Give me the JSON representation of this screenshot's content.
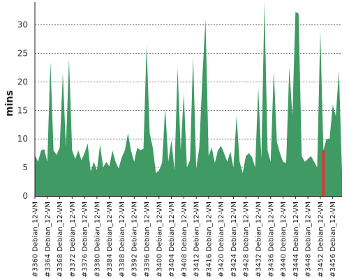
{
  "chart_data": {
    "type": "area",
    "title": "",
    "xlabel": "",
    "ylabel": "mins",
    "ylim": [
      0,
      34
    ],
    "yticks": [
      0,
      5,
      10,
      15,
      20,
      25,
      30
    ],
    "grid": "horizontal-dashed",
    "colors": {
      "fill": "#3f9a64",
      "highlight": "#d63a3a",
      "grid": "#555555"
    },
    "x_tick_labels": [
      "#3360 Debian_12-VM",
      "#3364 Debian_12-VM",
      "#3368 Debian_12-VM",
      "#3372 Debian_12-VM",
      "#3376 Debian_12-VM",
      "#3380 Debian_12-VM",
      "#3384 Debian_12-VM",
      "#3388 Debian_12-VM",
      "#3392 Debian_12-VM",
      "#3396 Debian_12-VM",
      "#3400 Debian_12-VM",
      "#3404 Debian_12-VM",
      "#3408 Debian_12-VM",
      "#3412 Debian_12-VM",
      "#3416 Debian_12-VM",
      "#3420 Debian_12-VM",
      "#3424 Debian_12-VM",
      "#3428 Debian_12-VM",
      "#3432 Debian_12-VM",
      "#3436 Debian_12-VM",
      "#3440 Debian_12-VM",
      "#3444 Debian_12-VM",
      "#3448 Debian_12-VM",
      "#3452 Debian_12-VM",
      "#3456 Debian_12-VM"
    ],
    "x": [
      3360,
      3361,
      3362,
      3363,
      3364,
      3365,
      3366,
      3367,
      3368,
      3369,
      3370,
      3371,
      3372,
      3373,
      3374,
      3375,
      3376,
      3377,
      3378,
      3379,
      3380,
      3381,
      3382,
      3383,
      3384,
      3385,
      3386,
      3387,
      3388,
      3389,
      3390,
      3391,
      3392,
      3393,
      3394,
      3395,
      3396,
      3397,
      3398,
      3399,
      3400,
      3401,
      3402,
      3403,
      3404,
      3405,
      3406,
      3407,
      3408,
      3409,
      3410,
      3411,
      3412,
      3413,
      3414,
      3415,
      3416,
      3417,
      3418,
      3419,
      3420,
      3421,
      3422,
      3423,
      3424,
      3425,
      3426,
      3427,
      3428,
      3429,
      3430,
      3431,
      3432,
      3433,
      3434,
      3435,
      3436,
      3437,
      3438,
      3439,
      3440,
      3441,
      3442,
      3443,
      3444,
      3445,
      3446,
      3447,
      3448,
      3449,
      3450,
      3451,
      3452,
      3453,
      3454,
      3455,
      3456,
      3457,
      3458,
      3459
    ],
    "values": [
      7.2,
      6.0,
      8.0,
      8.2,
      6.0,
      23.5,
      8.0,
      7.2,
      8.5,
      21.5,
      8.5,
      24.0,
      8.0,
      6.5,
      8.0,
      6.3,
      7.5,
      9.2,
      4.3,
      6.0,
      4.5,
      9.0,
      5.0,
      6.0,
      5.2,
      8.0,
      6.0,
      4.8,
      6.8,
      8.0,
      11.0,
      7.9,
      6.0,
      8.5,
      8.0,
      8.3,
      26.5,
      11.0,
      8.5,
      4.0,
      4.5,
      5.8,
      15.5,
      6.0,
      9.8,
      4.5,
      22.5,
      8.0,
      18.0,
      5.0,
      6.3,
      24.5,
      4.8,
      8.5,
      21.0,
      31.0,
      7.0,
      8.5,
      5.8,
      8.0,
      8.8,
      7.5,
      6.0,
      7.8,
      5.0,
      14.0,
      6.0,
      4.0,
      7.0,
      7.5,
      6.8,
      5.0,
      19.0,
      6.5,
      34.0,
      8.0,
      6.0,
      22.0,
      9.5,
      7.5,
      6.0,
      5.8,
      22.5,
      14.0,
      32.3,
      32.0,
      7.0,
      6.0,
      6.5,
      7.0,
      6.0,
      5.0,
      29.0,
      8.0,
      10.0,
      10.0,
      16.0,
      14.0,
      22.0,
      4.0
    ],
    "highlight_x": 3453,
    "highlight_value": 8.0
  }
}
